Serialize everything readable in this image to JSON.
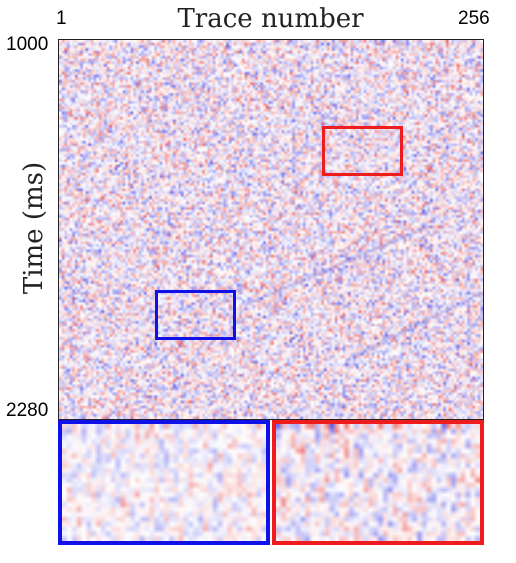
{
  "figure": {
    "title": "Trace number",
    "y_label": "Time (ms)",
    "x_ticks": {
      "min": "1",
      "max": "256"
    },
    "y_ticks": {
      "top": "1000",
      "bottom": "2280"
    }
  },
  "colors": {
    "negative": "#2020e0",
    "neutral": "#ffffff",
    "positive": "#e02020",
    "roi_red": "#ee1c1c",
    "roi_blue": "#1010e8"
  },
  "insets": [
    {
      "name": "blue-zoom",
      "color": "blue"
    },
    {
      "name": "red-zoom",
      "color": "red"
    }
  ]
}
